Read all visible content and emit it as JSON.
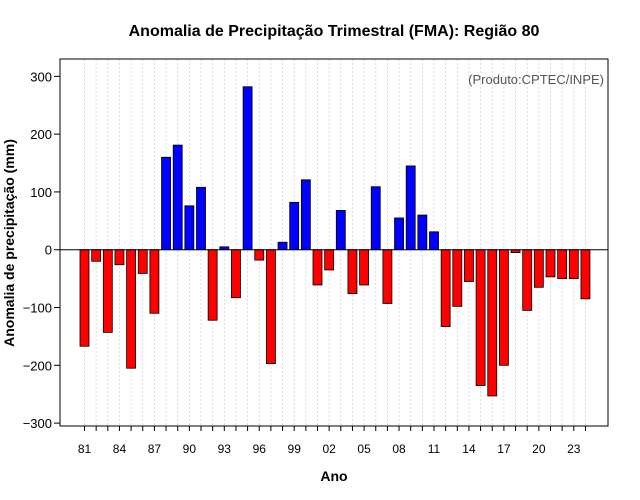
{
  "chart_data": {
    "type": "bar",
    "title": "Anomalia de Precipitação Trimestral (FMA): Região 80",
    "xlabel": "Ano",
    "ylabel": "Anomalia de precipitação (mm)",
    "credit": "(Produto:CPTEC/INPE)",
    "ylim": [
      -305,
      330
    ],
    "yticks": [
      -300,
      -200,
      -100,
      0,
      100,
      200,
      300
    ],
    "ytick_labels": [
      "−300",
      "−200",
      "−100",
      "0",
      "100",
      "200",
      "300"
    ],
    "years": [
      1981,
      1982,
      1983,
      1984,
      1985,
      1986,
      1987,
      1988,
      1989,
      1990,
      1991,
      1992,
      1993,
      1994,
      1995,
      1996,
      1997,
      1998,
      1999,
      2000,
      2001,
      2002,
      2003,
      2004,
      2005,
      2006,
      2007,
      2008,
      2009,
      2010,
      2011,
      2012,
      2013,
      2014,
      2015,
      2016,
      2017,
      2018,
      2019,
      2020,
      2021,
      2022,
      2023,
      2024
    ],
    "values": [
      -167,
      -20,
      -143,
      -26,
      -205,
      -41,
      -110,
      160,
      181,
      76,
      108,
      -122,
      5,
      -83,
      282,
      -18,
      -197,
      13,
      82,
      121,
      -61,
      -35,
      68,
      -76,
      -61,
      109,
      -93,
      55,
      145,
      60,
      31,
      -133,
      -98,
      -55,
      -235,
      -253,
      -200,
      -5,
      -105,
      -65,
      -47,
      -50,
      -50,
      -85
    ],
    "xtick_labels": [
      "81",
      "84",
      "87",
      "90",
      "93",
      "96",
      "99",
      "02",
      "05",
      "08",
      "11",
      "14",
      "17",
      "20",
      "23"
    ],
    "xtick_years": [
      1981,
      1984,
      1987,
      1990,
      1993,
      1996,
      1999,
      2002,
      2005,
      2008,
      2011,
      2014,
      2017,
      2020,
      2023
    ],
    "colors": {
      "positive": "#0000ff",
      "negative": "#ff0000",
      "grid": "#d3d3d3",
      "zero_line": "#000000"
    },
    "grid": true
  }
}
